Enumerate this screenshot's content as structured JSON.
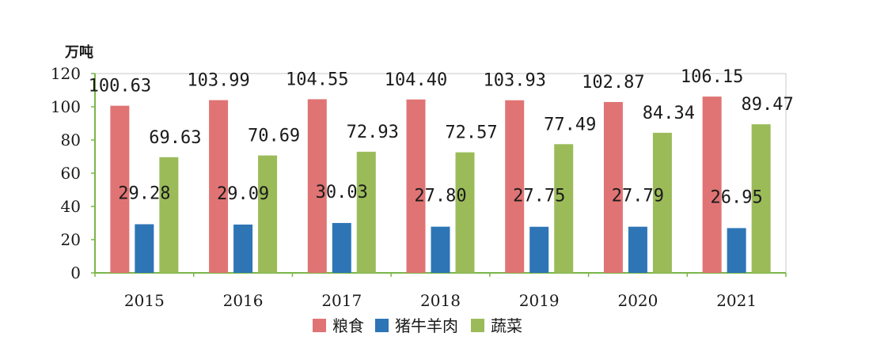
{
  "chart_data": {
    "type": "bar",
    "unit_label": "万吨",
    "categories": [
      "2015",
      "2016",
      "2017",
      "2018",
      "2019",
      "2020",
      "2021"
    ],
    "series": [
      {
        "name": "粮食",
        "color": "#e07474",
        "values": [
          100.63,
          103.99,
          104.55,
          104.4,
          103.93,
          102.87,
          106.15
        ],
        "labels": [
          "100.63",
          "103.99",
          "104.55",
          "104.40",
          "103.93",
          "102.87",
          "106.15"
        ]
      },
      {
        "name": "猪牛羊肉",
        "color": "#2e75b6",
        "values": [
          29.28,
          29.09,
          30.03,
          27.8,
          27.75,
          27.79,
          26.95
        ],
        "labels": [
          "29.28",
          "29.09",
          "30.03",
          "27.80",
          "27.75",
          "27.79",
          "26.95"
        ]
      },
      {
        "name": "蔬菜",
        "color": "#9bbb59",
        "values": [
          69.63,
          70.69,
          72.93,
          72.57,
          77.49,
          84.34,
          89.47
        ],
        "labels": [
          "69.63",
          "70.69",
          "72.93",
          "72.57",
          "77.49",
          "84.34",
          "89.47"
        ]
      }
    ],
    "y_ticks": [
      "0",
      "20",
      "40",
      "60",
      "80",
      "100",
      "120"
    ],
    "ylim": [
      0,
      120
    ],
    "axis_color": "#7ab648",
    "legend_position": "bottom"
  }
}
